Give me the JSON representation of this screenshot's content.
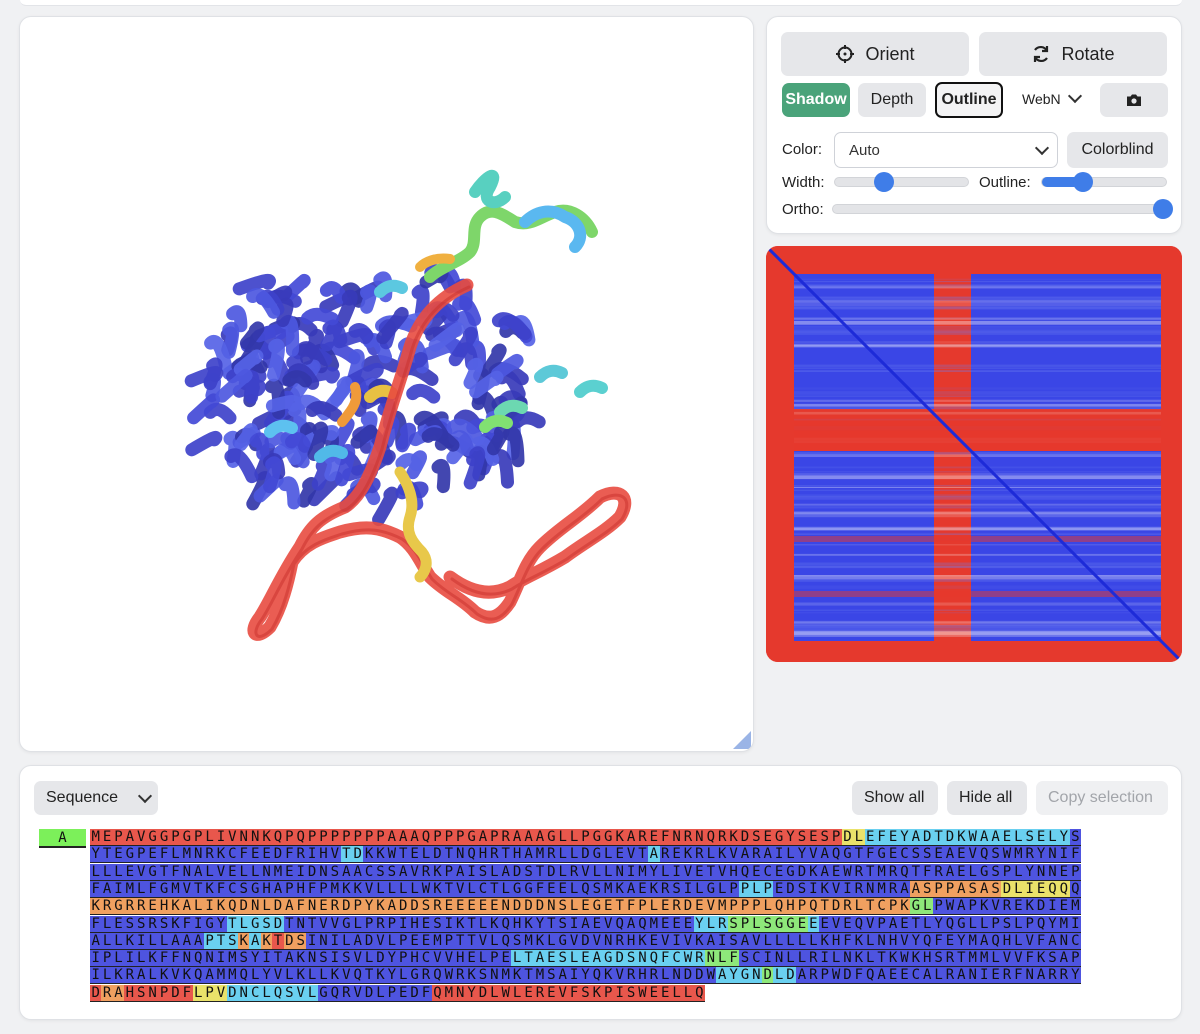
{
  "viewer_controls": {
    "orient_label": "Orient",
    "rotate_label": "Rotate",
    "shadow_label": "Shadow",
    "depth_label": "Depth",
    "outline_label": "Outline",
    "renderer_value": "WebN",
    "color_label": "Color:",
    "color_value": "Auto",
    "colorblind_label": "Colorblind",
    "width_label": "Width:",
    "outline_slider_label": "Outline:",
    "ortho_label": "Ortho:",
    "width_level": 0.37,
    "outline_level": 0.33,
    "ortho_level": 1.0,
    "colors": {
      "shadow_active": "#4aa37a",
      "slider": "#3f7de8"
    }
  },
  "icons": {
    "orient": "crosshair-icon",
    "rotate": "refresh-icon",
    "renderer_dropdown": "chevron-down-icon",
    "snapshot": "camera-icon",
    "resize": "resize-handle-icon"
  },
  "sequence_panel": {
    "mode_value": "Sequence",
    "show_all_label": "Show all",
    "hide_all_label": "Hide all",
    "copy_selection_label": "Copy selection",
    "chain_label": "A",
    "lines": [
      "MEPAVGGPGPLIVNNKQPQPPPPPPPAAAQPPPGAPRAAAGLLPGGKAREFNRNQRKDSEGYSESPDLEFEYADTDKWAAELSELYS",
      "YTEGPEFLMNRKCFEEDFRIHVTDKKWTELDTNQHRTHAMRLLDGLEVTAREKRLKVARAILYVAQGTFGECSSEAEVQSWMRYNIF",
      "LLLEVGTFNALVELLNMEIDNSAACSSAVRKPAISLADSTDLRVLLNIMYLIVETVHQECEGDKAEWRTMRQTFRAELGSPLYNNEP",
      "FAIMLFGMVTKFCSGHAPHFPMKKVLLLLWKTVLCTLGGFEELQSMKAEKRSILGLPPLPEDSIKVIRNMRAASPPASASDLIEQQQ",
      "KRGRREHKALIKQDNLDAFNERDPYKADDSREEEEENDDDNSLEGETFPLERDEVMPPPLQHPQTDRLTCPKGLPWAPKVREKDIEM",
      "FLESSRSKFIGYTLGSDTNTVVGLPRPIHESIKTLKQHKYTSIAEVQAQMEEEYLRSPLSGGEEEVEQVPAETLYQGLLPSLPQYMI",
      "ALLKILLAAAPTSKAKTDSINILADVLPEEMPTTVLQSMKLGVDVNRHKEVIVKAISAVLLLLLKHFKLNHVYQFEYMAQHLVFANC",
      "IPLILKFFNQNIMSYITAKNSISVLDYPHCVVHELPELTAESLEAGDSNQFCWRNLFSCINLLRILNKLTKWKHSRTMMLVVFKSAP",
      "ILKRALKVKQAMMQLYVLKLLKVQTKYLGRQWRKSNMKTMSAIYQKVRHRLNDDWAYGNDLDARPWDFQAEECALRANIERFNARRY",
      "DRAHSNPDFLPVDNCLQSVLGQRVDLPEDFQMNYDLWLEREVFSKPISWEELLQ"
    ],
    "confidence_runs": [
      [
        [
          0,
          20,
          "r"
        ],
        [
          20,
          35,
          "r"
        ],
        [
          35,
          45,
          "r"
        ],
        [
          45,
          66,
          "r"
        ],
        [
          66,
          68,
          "y"
        ],
        [
          68,
          71,
          "c"
        ],
        [
          71,
          86,
          "c"
        ]
      ],
      [
        [
          0,
          22,
          "b"
        ],
        [
          22,
          24,
          "c"
        ],
        [
          24,
          49,
          "b"
        ],
        [
          49,
          50,
          "c"
        ],
        [
          50,
          86,
          "b"
        ]
      ],
      [
        [
          0,
          86,
          "b"
        ]
      ],
      [
        [
          0,
          57,
          "b"
        ],
        [
          57,
          60,
          "c"
        ],
        [
          60,
          72,
          "b"
        ],
        [
          72,
          80,
          "o"
        ],
        [
          80,
          86,
          "y"
        ]
      ],
      [
        [
          0,
          72,
          "o"
        ],
        [
          72,
          74,
          "g"
        ],
        [
          74,
          86,
          "b"
        ]
      ],
      [
        [
          0,
          12,
          "b"
        ],
        [
          12,
          17,
          "c"
        ],
        [
          17,
          53,
          "b"
        ],
        [
          53,
          56,
          "c"
        ],
        [
          56,
          63,
          "g"
        ],
        [
          63,
          64,
          "c"
        ],
        [
          64,
          86,
          "b"
        ]
      ],
      [
        [
          0,
          10,
          "b"
        ],
        [
          10,
          13,
          "c"
        ],
        [
          13,
          14,
          "o"
        ],
        [
          14,
          15,
          "c"
        ],
        [
          15,
          16,
          "o"
        ],
        [
          16,
          17,
          "r"
        ],
        [
          17,
          19,
          "o"
        ],
        [
          19,
          86,
          "b"
        ]
      ],
      [
        [
          0,
          37,
          "b"
        ],
        [
          37,
          54,
          "c"
        ],
        [
          54,
          57,
          "g"
        ],
        [
          57,
          86,
          "b"
        ]
      ],
      [
        [
          0,
          55,
          "b"
        ],
        [
          55,
          59,
          "c"
        ],
        [
          59,
          60,
          "g"
        ],
        [
          60,
          62,
          "c"
        ],
        [
          62,
          86,
          "b"
        ]
      ],
      [
        [
          0,
          1,
          "r"
        ],
        [
          1,
          3,
          "o"
        ],
        [
          3,
          9,
          "r"
        ],
        [
          9,
          12,
          "y"
        ],
        [
          12,
          20,
          "c"
        ],
        [
          20,
          30,
          "b"
        ],
        [
          30,
          54,
          "r"
        ]
      ]
    ],
    "confidence_colors": {
      "b": "#4e54e0",
      "c": "#6ad0f0",
      "g": "#8ee87a",
      "y": "#eae26a",
      "o": "#f0a060",
      "r": "#e8574c"
    }
  }
}
